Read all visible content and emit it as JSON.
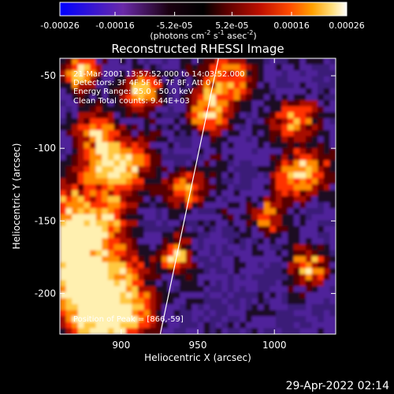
{
  "colorbar": {
    "tick_labels": [
      "-0.00026",
      "-0.00016",
      "-5.2e-05",
      "5.2e-05",
      "0.00016",
      "0.00026"
    ],
    "tick_values": [
      -0.00026,
      -0.00016,
      -5.2e-05,
      5.2e-05,
      0.00016,
      0.00026
    ],
    "range": [
      -0.00026,
      0.00026
    ],
    "unit_base": "(photons cm",
    "unit_exp1": "-2",
    "unit_mid": " s",
    "unit_exp2": "-1",
    "unit_mid2": " asec",
    "unit_exp3": "-2",
    "unit_end": ")",
    "colors": [
      "#0000ff",
      "#6a2aa8",
      "#000000",
      "#5a0000",
      "#c01000",
      "#ff4a00",
      "#ffa000",
      "#ffe080",
      "#ffffff"
    ]
  },
  "chart_data": {
    "type": "heatmap",
    "title": "Reconstructed RHESSI Image",
    "xlabel": "Heliocentric X (arcsec)",
    "ylabel": "Heliocentric Y (arcsec)",
    "xlim": [
      860,
      1040
    ],
    "ylim": [
      -228,
      -38
    ],
    "x_ticks": [
      900,
      950,
      1000
    ],
    "x_tick_labels": [
      "900",
      "950",
      "1000"
    ],
    "y_ticks": [
      -50,
      -100,
      -150,
      -200
    ],
    "y_tick_labels": [
      "-50",
      "-100",
      "-150",
      "-200"
    ],
    "limb_line": {
      "x": [
        925.5,
        963.5
      ],
      "y": [
        -228,
        -38
      ]
    },
    "annotations": {
      "time_range": "21-Mar-2001 13:57:52.000 to 14:03:52.000",
      "detectors": "Detectors: 3F 4F 5F 6F 7F 8F, Att 0",
      "energy_range": "Energy Range: 25.0 - 50.0 keV",
      "clean_counts": "Clean     Total counts: 9.44E+03",
      "peak_position": "Position of Peak = [866,-59]"
    }
  },
  "footer": {
    "timestamp": "29-Apr-2022 02:14"
  }
}
